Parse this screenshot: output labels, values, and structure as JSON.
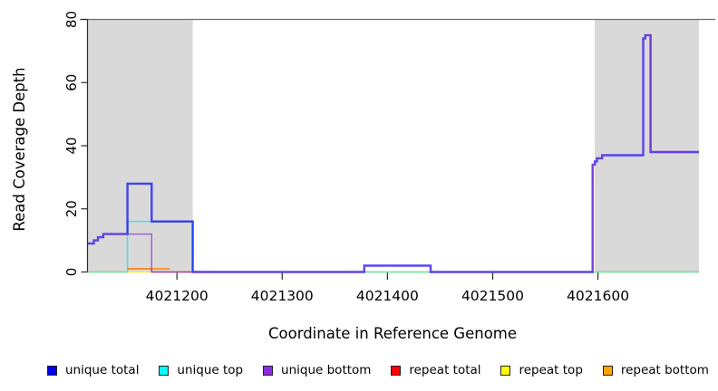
{
  "chart_data": {
    "type": "line",
    "step": "after",
    "title": "",
    "xlabel": "Coordinate in Reference Genome",
    "ylabel": "Read Coverage Depth",
    "xlim": [
      4021115,
      4021696
    ],
    "ylim": [
      0,
      80
    ],
    "x_ticks": [
      4021200,
      4021300,
      4021400,
      4021500,
      4021600
    ],
    "y_ticks": [
      0,
      20,
      40,
      60,
      80
    ],
    "grid": false,
    "legend_position": "bottom",
    "background_color": "#ffffff",
    "shaded_region_color": "#d9d9d9",
    "cap_line": {
      "y": 80,
      "color": "#6e6e6e"
    },
    "shaded_regions": [
      {
        "x0": 4021115,
        "x1": 4021215
      },
      {
        "x0": 4021597,
        "x1": 4021696
      }
    ],
    "series": [
      {
        "name": "repeat top",
        "color": "#ffe600",
        "alpha": 0.75,
        "width": 1.4,
        "points": [
          [
            4021115,
            0
          ],
          [
            4021696,
            0
          ]
        ]
      },
      {
        "name": "unique top",
        "color": "#00dceb",
        "alpha": 0.6,
        "width": 1.6,
        "points": [
          [
            4021115,
            0
          ],
          [
            4021153,
            16
          ],
          [
            4021215,
            0
          ],
          [
            4021696,
            0
          ]
        ]
      },
      {
        "name": "repeat total",
        "color": "#f51e3c",
        "alpha": 0.65,
        "width": 1.5,
        "points": [
          [
            4021153,
            1
          ],
          [
            4021176,
            0
          ],
          [
            4021219,
            0
          ]
        ]
      },
      {
        "name": "repeat bottom",
        "color": "#fa8c14",
        "alpha": 0.85,
        "width": 2,
        "points": [
          [
            4021153,
            1
          ],
          [
            4021193,
            1
          ]
        ]
      },
      {
        "name": "unique total",
        "color": "#0f0ff5",
        "alpha": 0.75,
        "width": 2.4,
        "points": [
          [
            4021115,
            9
          ],
          [
            4021121,
            10
          ],
          [
            4021125,
            11
          ],
          [
            4021130,
            12
          ],
          [
            4021153,
            28
          ],
          [
            4021176,
            16
          ],
          [
            4021215,
            0
          ],
          [
            4021378,
            2
          ],
          [
            4021441,
            0
          ],
          [
            4021595,
            34
          ],
          [
            4021597,
            35
          ],
          [
            4021599,
            36
          ],
          [
            4021604,
            37
          ],
          [
            4021643,
            74
          ],
          [
            4021645,
            75
          ],
          [
            4021650,
            38
          ],
          [
            4021696,
            38
          ]
        ]
      },
      {
        "name": "unique bottom",
        "color": "#873cd7",
        "alpha": 0.75,
        "width": 1.5,
        "points": [
          [
            4021115,
            9
          ],
          [
            4021121,
            10
          ],
          [
            4021125,
            11
          ],
          [
            4021130,
            12
          ],
          [
            4021176,
            0
          ],
          [
            4021378,
            2
          ],
          [
            4021441,
            0
          ],
          [
            4021595,
            34
          ],
          [
            4021597,
            35
          ],
          [
            4021599,
            36
          ],
          [
            4021604,
            37
          ],
          [
            4021643,
            74
          ],
          [
            4021645,
            75
          ],
          [
            4021650,
            38
          ],
          [
            4021696,
            38
          ]
        ]
      }
    ],
    "legend": [
      {
        "label": "unique total",
        "color": "#0000f0"
      },
      {
        "label": "unique top",
        "color": "#00ffff"
      },
      {
        "label": "unique bottom",
        "color": "#8a2be2"
      },
      {
        "label": "repeat total",
        "color": "#ff0000"
      },
      {
        "label": "repeat top",
        "color": "#ffff00"
      },
      {
        "label": "repeat bottom",
        "color": "#ffa500"
      }
    ]
  }
}
